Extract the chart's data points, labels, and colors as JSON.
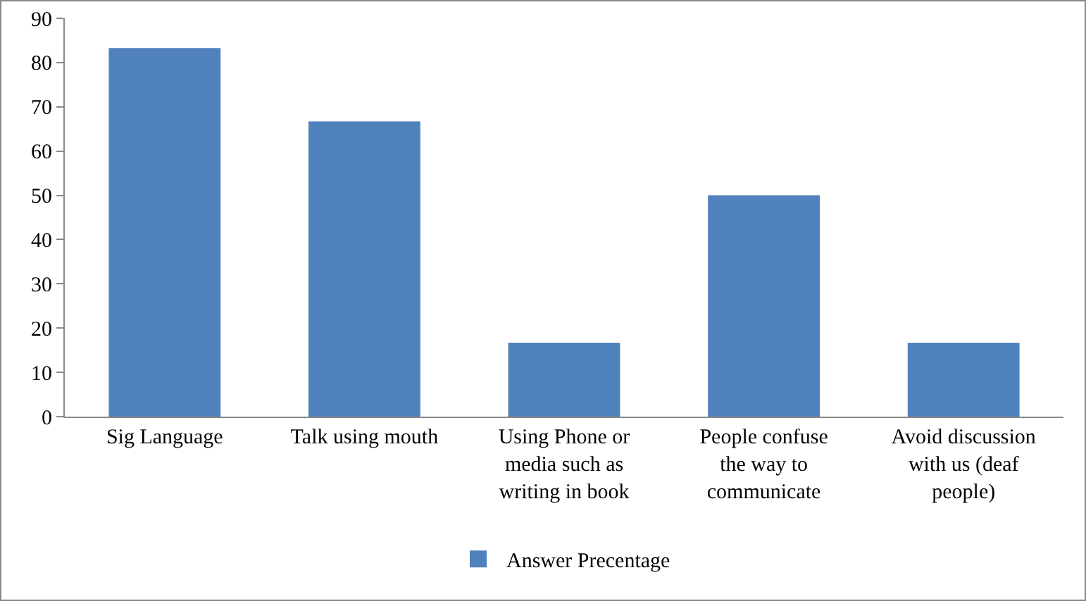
{
  "chart_data": {
    "type": "bar",
    "categories": [
      "Sig Language",
      "Talk using mouth",
      "Using Phone or media such as writing in book",
      "People confuse the way to communicate",
      "Avoid discussion with us (deaf people)"
    ],
    "series": [
      {
        "name": "Answer Precentage",
        "color": "#4f81bd",
        "values": [
          83.3,
          66.7,
          16.7,
          50,
          16.7
        ]
      }
    ],
    "ylim": [
      0,
      90
    ],
    "yticks": [
      0,
      10,
      20,
      30,
      40,
      50,
      60,
      70,
      80,
      90
    ],
    "grid": false,
    "legend": "bottom"
  }
}
